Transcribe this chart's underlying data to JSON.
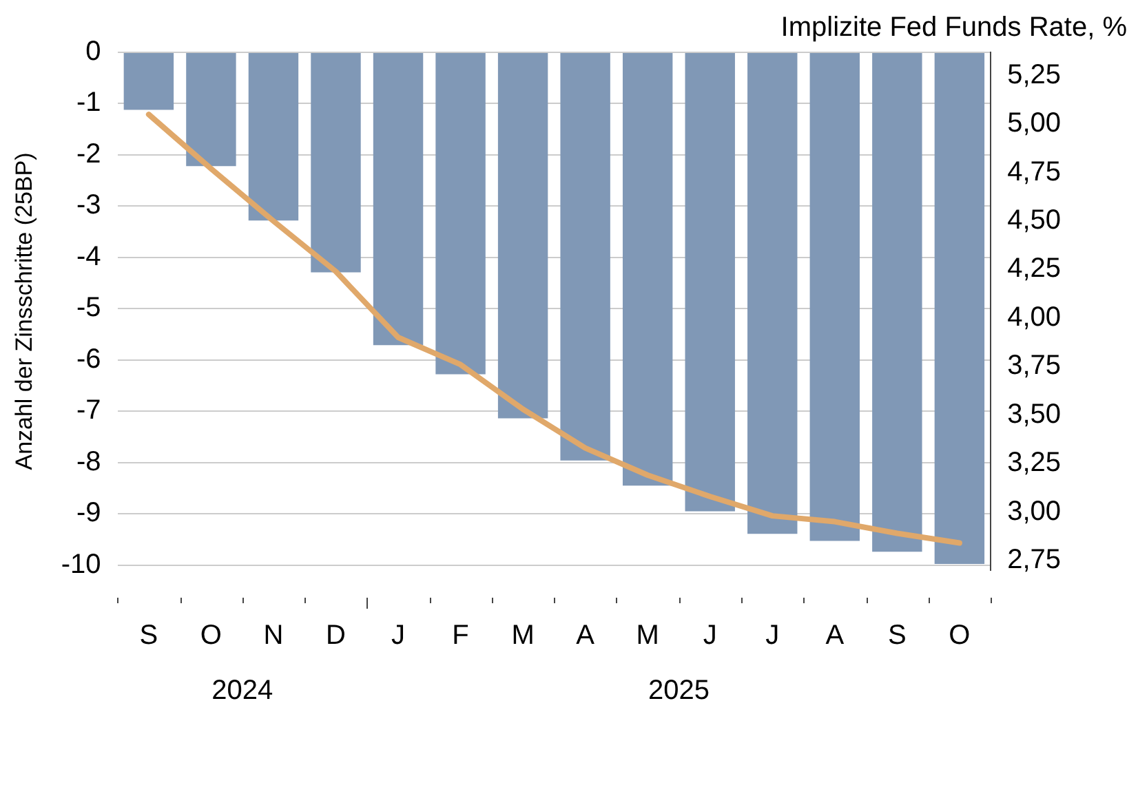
{
  "chart_data": {
    "type": "bar",
    "ylabel": "Anzahl der Zinsschritte (25BP)",
    "y2label": "Implizite Fed Funds Rate, %",
    "categories": [
      "S",
      "O",
      "N",
      "D",
      "J",
      "F",
      "M",
      "A",
      "M",
      "J",
      "J",
      "A",
      "S",
      "O"
    ],
    "series": [
      {
        "color": "#8098b6",
        "values": [
          -1.12,
          -2.22,
          -3.28,
          -4.29,
          -5.71,
          -6.28,
          -7.14,
          -7.96,
          -8.45,
          -8.95,
          -9.39,
          -9.53,
          -9.74,
          -9.98
        ]
      },
      {
        "type": "line",
        "axis": "y2",
        "color": "#e0a86a",
        "values": [
          5.05,
          4.77,
          4.5,
          4.24,
          3.9,
          3.76,
          3.53,
          3.33,
          3.19,
          3.08,
          2.98,
          2.95,
          2.89,
          2.84
        ]
      }
    ],
    "ylim": [
      -10.1,
      0
    ],
    "yticks": [
      0,
      -1,
      -2,
      -3,
      -4,
      -5,
      -6,
      -7,
      -8,
      -9,
      -10
    ],
    "y2lim": [
      2.7,
      5.37
    ],
    "y2ticks": [
      {
        "value": 2.75,
        "label": "2,75"
      },
      {
        "value": 3,
        "label": "3,00"
      },
      {
        "value": 3.25,
        "label": "3,25"
      },
      {
        "value": 3.5,
        "label": "3,50"
      },
      {
        "value": 3.75,
        "label": "3,75"
      },
      {
        "value": 4,
        "label": "4,00"
      },
      {
        "value": 4.25,
        "label": "4,25"
      },
      {
        "value": 4.5,
        "label": "4,50"
      },
      {
        "value": 4.75,
        "label": "4,75"
      },
      {
        "value": 5,
        "label": "5,00"
      },
      {
        "value": 5.25,
        "label": "5,25"
      }
    ],
    "grid": "y",
    "legend": false,
    "marker": "none",
    "line_style": "solid",
    "annotations": [
      "2024",
      "2025"
    ]
  }
}
